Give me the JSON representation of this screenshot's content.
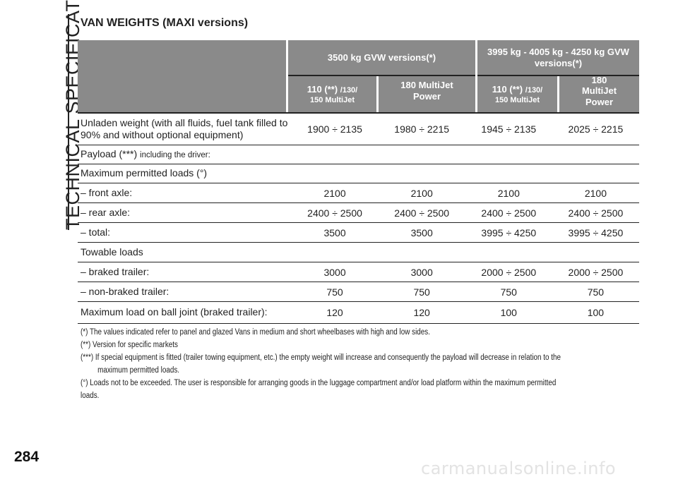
{
  "side_title": "TECHNICAL SPECIFICATIONS",
  "section_title": "VAN WEIGHTS (MAXI versions)",
  "table": {
    "group_headers": [
      {
        "label": "3500 kg GVW versions(*)"
      },
      {
        "label": "3995 kg - 4005 kg - 4250 kg GVW versions(*)"
      }
    ],
    "col_headers": [
      {
        "main": "110 (**)",
        "small": "/130/",
        "sub": "150 MultiJet"
      },
      {
        "main": "180 MultiJet Power"
      },
      {
        "main": "110 (**)",
        "small": "/130/",
        "sub": "150 MultiJet"
      },
      {
        "main": "180 MultiJet Power"
      }
    ],
    "rows": [
      {
        "label": "Unladen weight (with all fluids, fuel tank filled to 90% and without optional equipment)",
        "values": [
          "1900 ÷ 2135",
          "1980 ÷ 2215",
          "1945 ÷ 2135",
          "2025 ÷ 2215"
        ]
      },
      {
        "label": "Payload (***)",
        "label_small": "including the driver:",
        "values": [
          "",
          "",
          "",
          ""
        ]
      },
      {
        "label": "Maximum permitted loads (°)",
        "values": [
          "",
          "",
          "",
          ""
        ]
      },
      {
        "label": "– front axle:",
        "values": [
          "2100",
          "2100",
          "2100",
          "2100"
        ]
      },
      {
        "label": "– rear axle:",
        "values": [
          "2400 ÷ 2500",
          "2400 ÷ 2500",
          "2400 ÷ 2500",
          "2400 ÷ 2500"
        ]
      },
      {
        "label": "– total:",
        "values": [
          "3500",
          "3500",
          "3995 ÷ 4250",
          "3995 ÷ 4250"
        ]
      },
      {
        "label": "Towable loads",
        "values": [
          "",
          "",
          "",
          ""
        ]
      },
      {
        "label": "– braked trailer:",
        "values": [
          "3000",
          "3000",
          "2000 ÷ 2500",
          "2000 ÷ 2500"
        ]
      },
      {
        "label": "– non-braked trailer:",
        "values": [
          "750",
          "750",
          "750",
          "750"
        ]
      },
      {
        "label": "Maximum load on ball joint (braked trailer):",
        "values": [
          "120",
          "120",
          "100",
          "100"
        ]
      }
    ]
  },
  "notes": [
    "(*) The values indicated refer to panel and glazed Vans in medium and short wheelbases with high and low sides.",
    "(**) Version for specific markets",
    "(***) If special equipment is fitted (trailer towing equipment, etc.) the empty weight will increase and consequently the payload will decrease in relation to the",
    "maximum permitted loads.",
    "(°) Loads not to be exceeded. The user is responsible for arranging goods in the luggage compartment and/or load platform within the maximum permitted loads."
  ],
  "page_number": "284",
  "watermark": "carmanualsonline.info"
}
